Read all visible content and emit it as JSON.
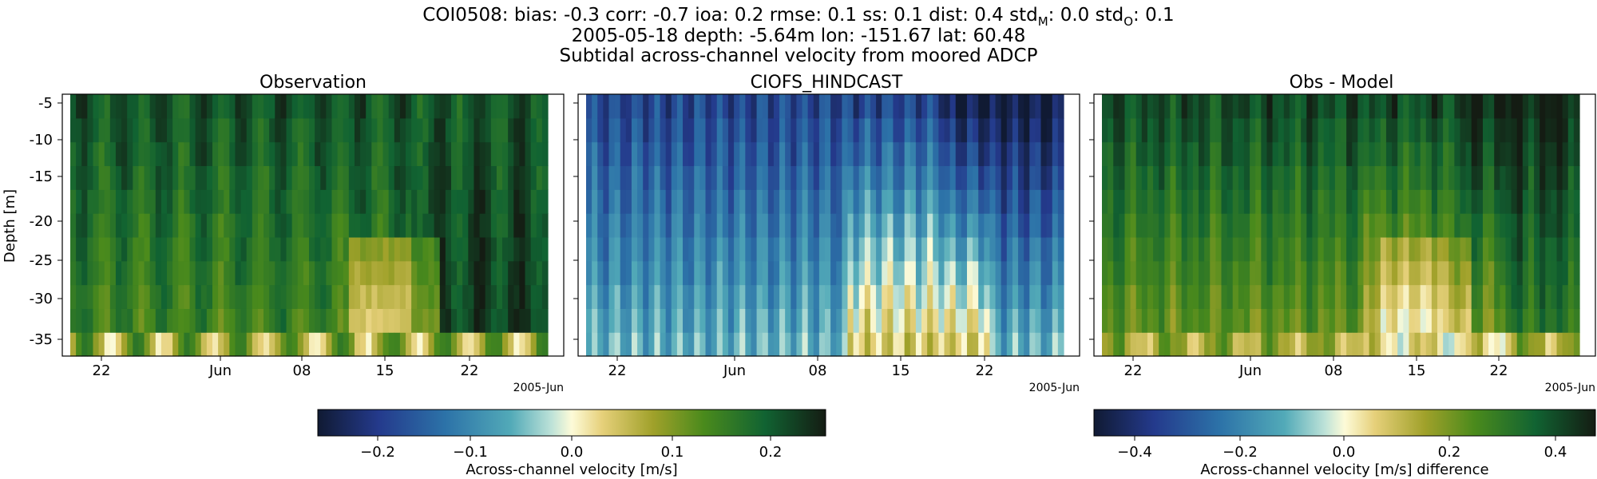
{
  "figure": {
    "title_lines": [
      "COI0508: bias: -0.3  corr: -0.7  ioa: 0.2  rmse: 0.1  ss: 0.1  dist: 0.4  std",
      "2005-05-18 depth: -5.64m lon: -151.67 lat: 60.48",
      "Subtidal across-channel velocity from moored ADCP"
    ],
    "std_parts": {
      "model_sub": "M",
      "model_value": ": 0.0  std",
      "obs_sub": "O",
      "obs_value": ": 0.1"
    }
  },
  "chart_data": [
    {
      "type": "heatmap",
      "title": "Observation",
      "ylabel": "Depth [m]",
      "yticks": [
        "-5",
        "-10",
        "-15",
        "-20",
        "-25",
        "-30",
        "-35"
      ],
      "xticks": [
        "22",
        "Jun",
        "08",
        "15",
        "22"
      ],
      "x_offset_label": "2005-Jun",
      "colormap": "delta",
      "vmin": -0.25,
      "vmax": 0.25,
      "colorbar_label": "Across-channel velocity [m/s]",
      "colorbar_ticks": [
        "−0.2",
        "−0.1",
        "0.0",
        "0.1",
        "0.2"
      ]
    },
    {
      "type": "heatmap",
      "title": "CIOFS_HINDCAST",
      "yticks": [
        "-5",
        "-10",
        "-15",
        "-20",
        "-25",
        "-30",
        "-35"
      ],
      "xticks": [
        "22",
        "Jun",
        "08",
        "15",
        "22"
      ],
      "x_offset_label": "2005-Jun",
      "colormap": "delta",
      "vmin": -0.25,
      "vmax": 0.25
    },
    {
      "type": "heatmap",
      "title": "Obs - Model",
      "yticks": [
        "-5",
        "-10",
        "-15",
        "-20",
        "-25",
        "-30",
        "-35"
      ],
      "xticks": [
        "22",
        "Jun",
        "08",
        "15",
        "22"
      ],
      "x_offset_label": "2005-Jun",
      "colormap": "delta",
      "vmin": -0.45,
      "vmax": 0.45,
      "colorbar_label": "Across-channel velocity [m/s] difference",
      "colorbar_ticks": [
        "−0.4",
        "−0.2",
        "0.0",
        "0.2",
        "0.4"
      ]
    }
  ]
}
